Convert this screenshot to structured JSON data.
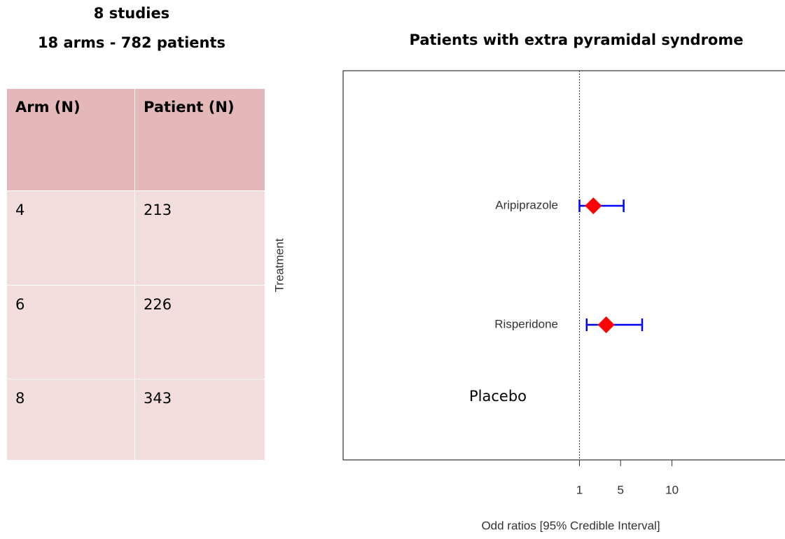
{
  "header": {
    "lines": [
      "8 studies",
      "18 arms - 782 patients"
    ]
  },
  "table": {
    "columns": [
      "Arm (N)",
      "Patient (N)"
    ],
    "rows": [
      [
        "4",
        "213"
      ],
      [
        "6",
        "226"
      ],
      [
        "8",
        "343"
      ]
    ]
  },
  "chart_data": {
    "type": "forest",
    "title": "Patients with extra pyramidal syndrome",
    "x_label": "Odd ratios [95% Credible   Interval]",
    "y_label": "Treatment",
    "categories": [
      "Aripiprazole",
      "Risperidone",
      "Placebo"
    ],
    "values": [
      2.35,
      3.6,
      null
    ],
    "low": [
      1.0,
      1.7,
      null
    ],
    "high": [
      5.3,
      7.1,
      null
    ],
    "point_color": "#ff0000",
    "interval_color": "#0000ff",
    "xlim": [
      -22,
      21
    ],
    "xticks": [
      1,
      5,
      10
    ],
    "refline": 1
  }
}
